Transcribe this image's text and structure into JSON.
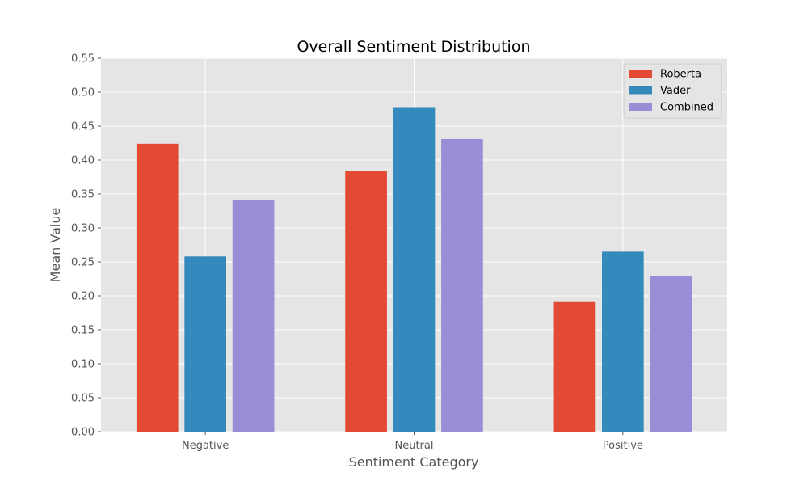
{
  "chart_data": {
    "type": "bar",
    "title": "Overall Sentiment Distribution",
    "xlabel": "Sentiment Category",
    "ylabel": "Mean Value",
    "categories": [
      "Negative",
      "Neutral",
      "Positive"
    ],
    "series": [
      {
        "name": "Roberta",
        "color": "#E24A33",
        "values": [
          0.424,
          0.384,
          0.192
        ]
      },
      {
        "name": "Vader",
        "color": "#348ABD",
        "values": [
          0.258,
          0.478,
          0.265
        ]
      },
      {
        "name": "Combined",
        "color": "#988ED5",
        "values": [
          0.341,
          0.431,
          0.229
        ]
      }
    ],
    "ylim": [
      0,
      0.55
    ],
    "yticks": [
      "0.00",
      "0.05",
      "0.10",
      "0.15",
      "0.20",
      "0.25",
      "0.30",
      "0.35",
      "0.40",
      "0.45",
      "0.50",
      "0.55"
    ],
    "grid": true,
    "legend_position": "top-right"
  }
}
